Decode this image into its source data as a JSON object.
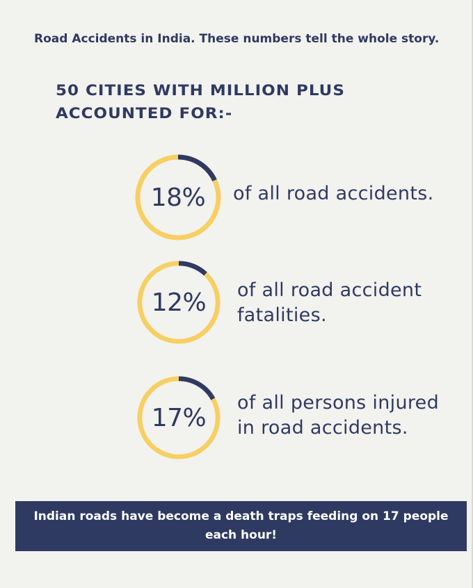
{
  "intro": "Road Accidents in India. These numbers tell the whole story.",
  "heading": "50 Cities with million plus accounted for:-",
  "stats": [
    {
      "value": "18%",
      "fraction": 0.18,
      "text": "of all road accidents."
    },
    {
      "value": "12%",
      "fraction": 0.12,
      "text": "of all road accident fatalities."
    },
    {
      "value": "17%",
      "fraction": 0.17,
      "text": "of all persons injured in road accidents."
    }
  ],
  "banner": "Indian roads have become a death traps feeding on 17 people each hour!",
  "colors": {
    "background": "#f2f2ee",
    "navy": "#2f3a63",
    "ring_track": "#f7cf62",
    "banner_text": "#ffffff"
  }
}
